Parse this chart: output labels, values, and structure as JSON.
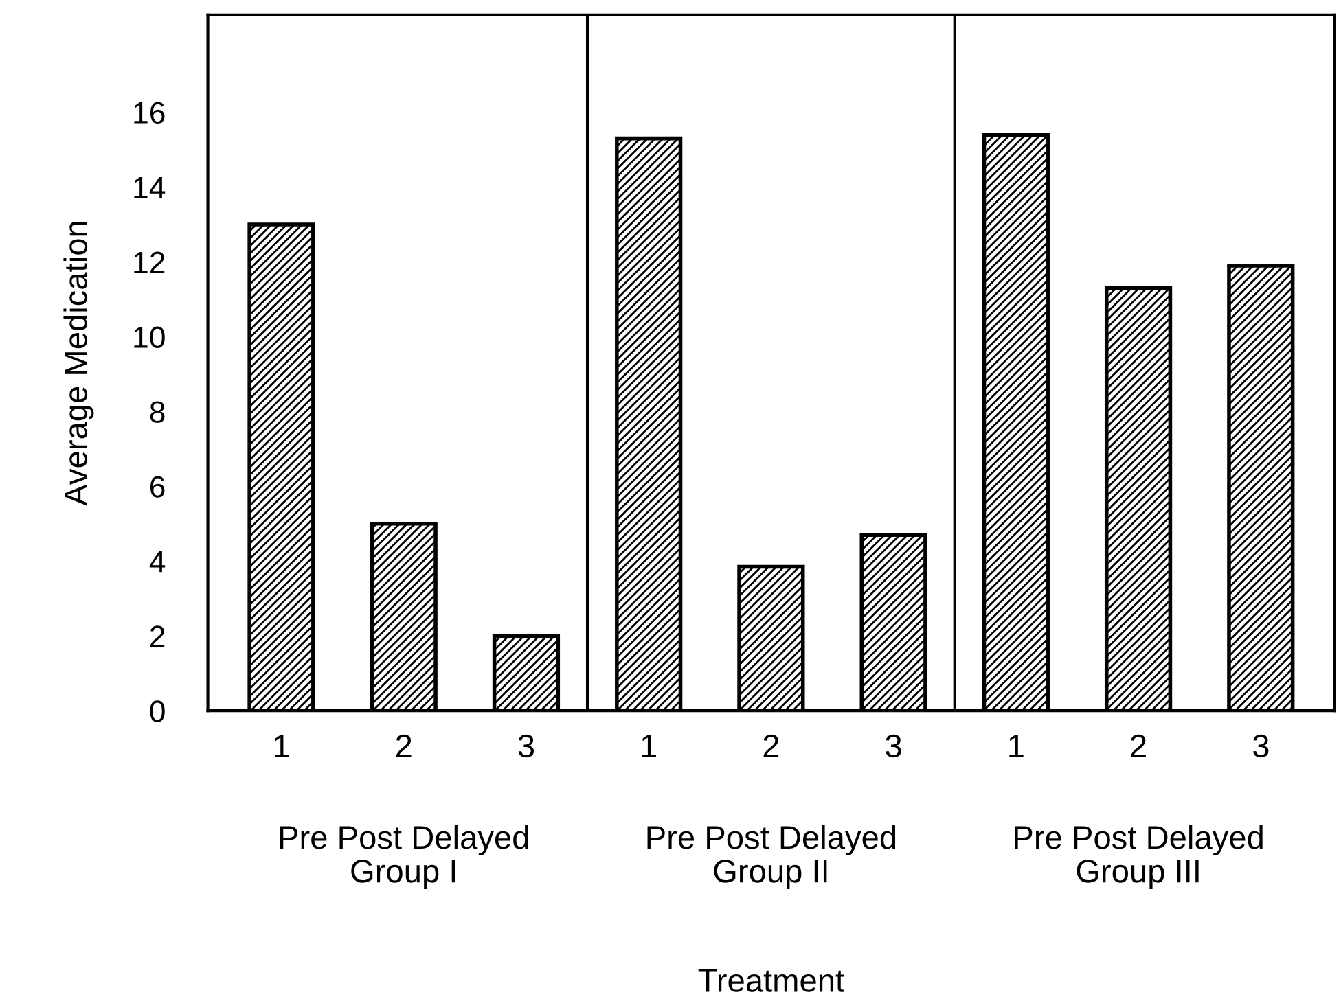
{
  "chart_data": {
    "type": "bar",
    "categories": [
      "1",
      "2",
      "3",
      "1",
      "2",
      "3",
      "1",
      "2",
      "3"
    ],
    "values": [
      13.0,
      5.0,
      2.0,
      15.3,
      3.85,
      4.7,
      15.4,
      11.3,
      11.9
    ],
    "color": "#000000",
    "ylim": [
      0,
      18.6
    ],
    "yticks": [
      0,
      2,
      4,
      6,
      8,
      10,
      12,
      14,
      16
    ],
    "ylabel": "Average Medication",
    "annotations": [
      "Pre Post Delayed\nGroup I",
      "Pre Post Delayed\nGroup II",
      "Pre Post Delayed\nGroup III",
      "Treatment"
    ],
    "grid": false
  }
}
